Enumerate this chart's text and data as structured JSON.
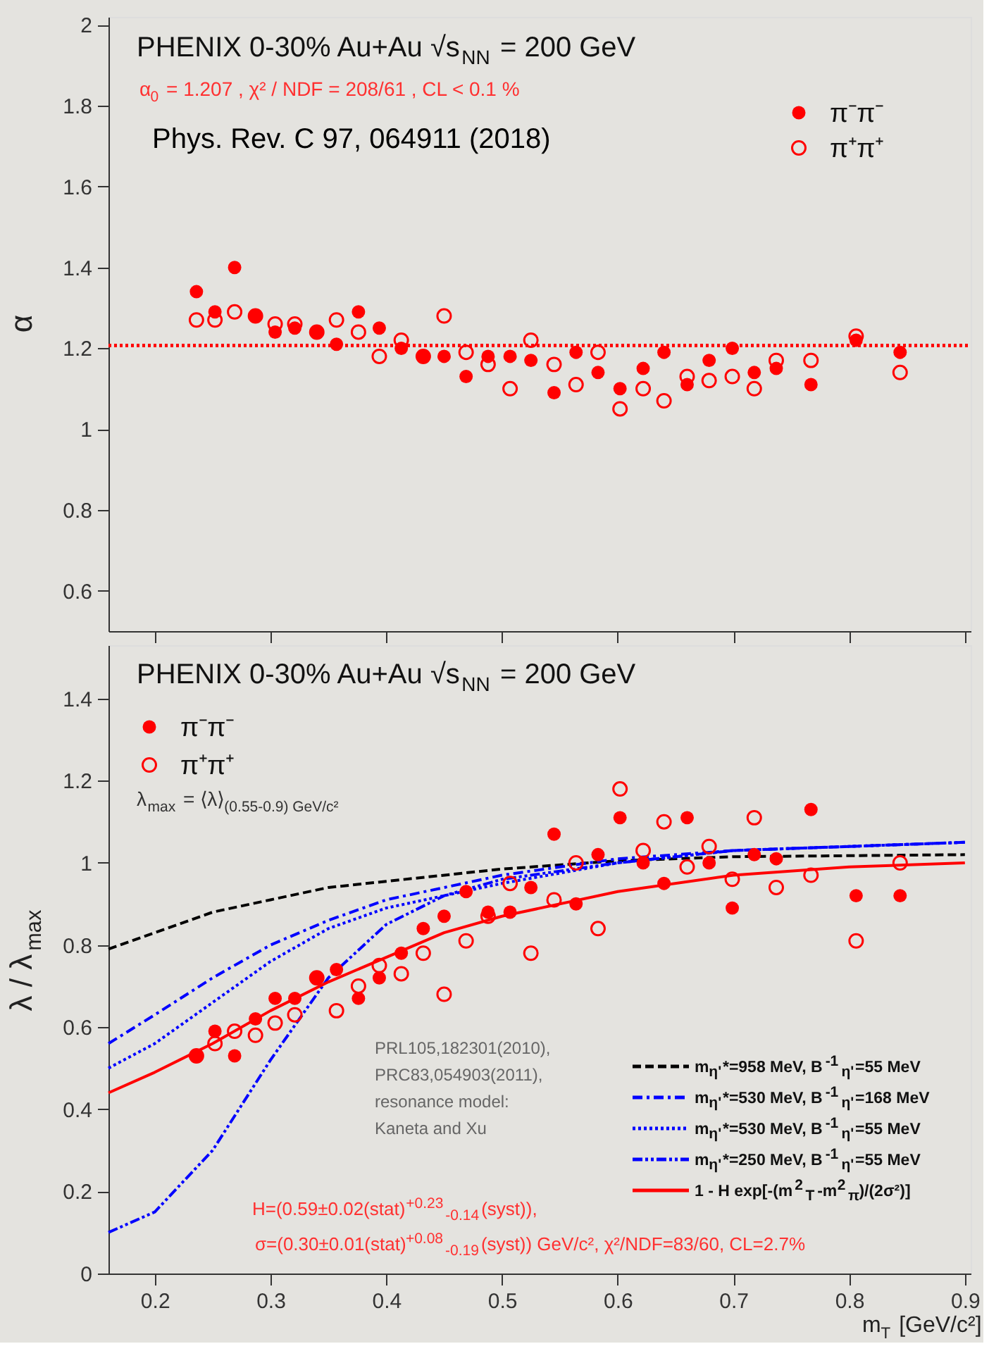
{
  "chart_data": [
    {
      "type": "scatter",
      "title": "PHENIX 0-30%  Au+Au  √s$_{NN}$ = 200 GeV",
      "ylabel": "α",
      "annotations": [
        "α$_{0}$ = 1.207  ,  χ² / NDF = 208/61  , CL < 0.1 %",
        "Phys. Rev. C 97, 064911 (2018)"
      ],
      "x": [
        0.236,
        0.252,
        0.269,
        0.287,
        0.304,
        0.321,
        0.34,
        0.357,
        0.376,
        0.394,
        0.413,
        0.432,
        0.45,
        0.469,
        0.488,
        0.507,
        0.525,
        0.545,
        0.564,
        0.583,
        0.602,
        0.622,
        0.64,
        0.66,
        0.679,
        0.699,
        0.718,
        0.737,
        0.767,
        0.806,
        0.844
      ],
      "series": [
        {
          "name": "π⁻π⁻",
          "color": "#ff0000",
          "marker": "circle",
          "values": [
            1.34,
            1.29,
            1.4,
            1.28,
            1.24,
            1.25,
            1.24,
            1.21,
            1.29,
            1.25,
            1.2,
            1.18,
            1.18,
            1.13,
            1.18,
            1.18,
            1.17,
            1.09,
            1.19,
            1.14,
            1.1,
            1.15,
            1.19,
            1.11,
            1.17,
            1.2,
            1.14,
            1.15,
            1.11,
            1.22,
            1.19
          ]
        },
        {
          "name": "π⁺π⁺",
          "color": "#ff0000",
          "marker": "circle",
          "values": [
            1.27,
            1.27,
            1.29,
            1.28,
            1.26,
            1.26,
            1.24,
            1.27,
            1.24,
            1.18,
            1.22,
            1.18,
            1.28,
            1.19,
            1.16,
            1.1,
            1.22,
            1.16,
            1.11,
            1.19,
            1.05,
            1.1,
            1.07,
            1.13,
            1.12,
            1.13,
            1.1,
            1.17,
            1.17,
            1.23,
            1.14
          ]
        }
      ],
      "ref_lines": [
        {
          "axis": "y",
          "value": 1.207,
          "color": "#ff0000",
          "line_style": "dotted"
        }
      ],
      "xlim": [
        0.16,
        0.905
      ],
      "xticks": [
        0.2,
        0.3,
        0.4,
        0.5,
        0.6,
        0.7,
        0.8,
        0.9
      ],
      "ylim": [
        0.5,
        2.02
      ],
      "yticks": [
        0.6,
        0.8,
        1,
        1.2,
        1.4,
        1.6,
        1.8,
        2
      ],
      "tick_labels": "y",
      "legend": "top right",
      "grid": false
    },
    {
      "type": "scatter",
      "title": "PHENIX 0-30%  Au+Au  √s$_{NN}$ = 200 GeV",
      "ylabel": "λ / λ$_{max}$",
      "xlabel": "m$_{T}$ [GeV/c²]",
      "annotations": [
        "λ$_{max}$ = ⟨λ⟩$_{(0.55-0.9) GeV/c²}$",
        "PRL105,182301(2010),",
        "PRC83,054903(2011),",
        "resonance model:",
        "Kaneta and Xu",
        "H=(0.59±0.02(stat)$^{+0.23}$$_{-0.14}$(syst)),",
        "σ=(0.30±0.01(stat)$^{+0.08}$$_{-0.19}$(syst)) GeV/c², χ²/NDF=83/60, CL=2.7%"
      ],
      "x": [
        0.236,
        0.252,
        0.269,
        0.287,
        0.304,
        0.321,
        0.34,
        0.357,
        0.376,
        0.394,
        0.413,
        0.432,
        0.45,
        0.469,
        0.488,
        0.507,
        0.525,
        0.545,
        0.564,
        0.583,
        0.602,
        0.622,
        0.64,
        0.66,
        0.679,
        0.699,
        0.718,
        0.737,
        0.767,
        0.806,
        0.844
      ],
      "series": [
        {
          "name": "π⁻π⁻",
          "color": "#ff0000",
          "marker": "circle",
          "values": [
            0.53,
            0.59,
            0.53,
            0.62,
            0.67,
            0.67,
            0.72,
            0.74,
            0.67,
            0.72,
            0.78,
            0.84,
            0.87,
            0.93,
            0.88,
            0.88,
            0.94,
            1.07,
            0.9,
            1.02,
            1.11,
            1.0,
            0.95,
            1.11,
            1.0,
            0.89,
            1.02,
            1.01,
            1.13,
            0.92,
            0.92
          ]
        },
        {
          "name": "π⁺π⁺",
          "color": "#ff0000",
          "marker": "circle",
          "values": [
            0.53,
            0.56,
            0.59,
            0.58,
            0.61,
            0.63,
            0.72,
            0.64,
            0.7,
            0.75,
            0.73,
            0.78,
            0.68,
            0.81,
            0.87,
            0.95,
            0.78,
            0.91,
            1.0,
            0.84,
            1.18,
            1.03,
            1.1,
            0.99,
            1.04,
            0.96,
            1.11,
            0.94,
            0.97,
            0.81,
            1.0
          ]
        },
        {
          "name": "m$_{η'}$*=958 MeV, B$^{-1}$$_{η'}$=55 MeV",
          "type": "line",
          "color": "#000000",
          "line_style": "dashed",
          "x": [
            0.16,
            0.2,
            0.25,
            0.3,
            0.35,
            0.4,
            0.5,
            0.6,
            0.7,
            0.9
          ],
          "values": [
            0.79,
            0.83,
            0.88,
            0.91,
            0.94,
            0.955,
            0.985,
            1.005,
            1.015,
            1.02
          ]
        },
        {
          "name": "m$_{η'}$*=530 MeV, B$^{-1}$$_{η'}$=168 MeV",
          "type": "line",
          "color": "#0000ff",
          "line_style": "dashdot",
          "x": [
            0.16,
            0.2,
            0.25,
            0.3,
            0.35,
            0.4,
            0.45,
            0.5,
            0.6,
            0.7,
            0.9
          ],
          "values": [
            0.56,
            0.63,
            0.72,
            0.8,
            0.86,
            0.91,
            0.94,
            0.97,
            1.01,
            1.03,
            1.05
          ]
        },
        {
          "name": "m$_{η'}$*=530 MeV, B$^{-1}$$_{η'}$=55 MeV",
          "type": "line",
          "color": "#0000ff",
          "line_style": "dotted",
          "x": [
            0.16,
            0.2,
            0.25,
            0.3,
            0.35,
            0.4,
            0.5,
            0.6,
            0.7,
            0.9
          ],
          "values": [
            0.5,
            0.56,
            0.66,
            0.76,
            0.84,
            0.89,
            0.95,
            1.0,
            1.03,
            1.05
          ]
        },
        {
          "name": "m$_{η'}$*=250 MeV, B$^{-1}$$_{η'}$=55 MeV",
          "type": "line",
          "color": "#0000ff",
          "line_style": "dashdotdot",
          "x": [
            0.16,
            0.2,
            0.25,
            0.3,
            0.35,
            0.4,
            0.45,
            0.5,
            0.6,
            0.7,
            0.9
          ],
          "values": [
            0.1,
            0.15,
            0.3,
            0.52,
            0.72,
            0.85,
            0.92,
            0.96,
            1.0,
            1.03,
            1.05
          ]
        },
        {
          "name": "1 - H exp[-(m$^{2}$$_{T}$-m$^{2}$$_{π}$)/(2σ²)]",
          "type": "line",
          "color": "#ff0000",
          "line_style": "solid",
          "x": [
            0.16,
            0.2,
            0.25,
            0.3,
            0.35,
            0.4,
            0.45,
            0.5,
            0.6,
            0.7,
            0.8,
            0.9
          ],
          "values": [
            0.44,
            0.49,
            0.56,
            0.64,
            0.71,
            0.77,
            0.83,
            0.87,
            0.93,
            0.97,
            0.99,
            1.0
          ]
        }
      ],
      "xlim": [
        0.16,
        0.905
      ],
      "xticks": [
        0.2,
        0.3,
        0.4,
        0.5,
        0.6,
        0.7,
        0.8,
        0.9
      ],
      "ylim": [
        0,
        1.53
      ],
      "yticks": [
        0,
        0.2,
        0.4,
        0.6,
        0.8,
        1,
        1.2,
        1.4
      ],
      "legend": "bottom right",
      "grid": false
    }
  ]
}
